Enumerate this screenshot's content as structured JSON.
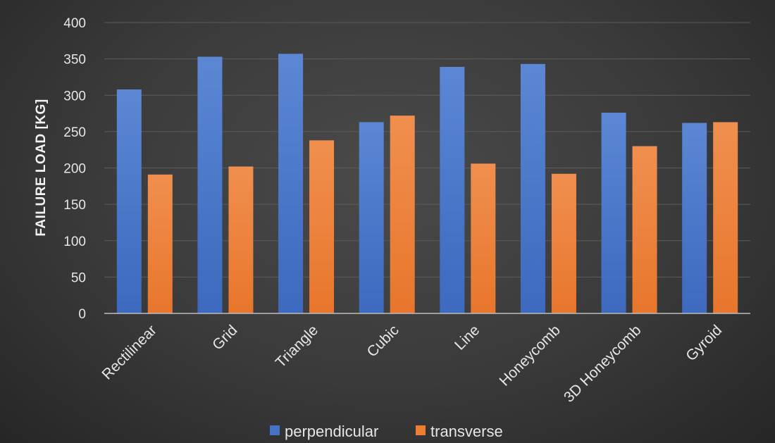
{
  "chart_data": {
    "type": "bar",
    "title": "",
    "xlabel": "",
    "ylabel": "FAILURE LOAD [KG]",
    "ylim": [
      0,
      400
    ],
    "yticks": [
      0,
      50,
      100,
      150,
      200,
      250,
      300,
      350,
      400
    ],
    "grid": true,
    "legend_position": "bottom",
    "categories": [
      "Rectilinear",
      "Grid",
      "Triangle",
      "Cubic",
      "Line",
      "Honeycomb",
      "3D Honeycomb",
      "Gyroid"
    ],
    "series": [
      {
        "name": "perpendicular",
        "color": "#4472c4",
        "values": [
          308,
          353,
          357,
          263,
          339,
          343,
          276,
          262
        ]
      },
      {
        "name": "transverse",
        "color": "#ed7d31",
        "values": [
          191,
          202,
          238,
          272,
          206,
          192,
          230,
          263
        ]
      }
    ]
  }
}
